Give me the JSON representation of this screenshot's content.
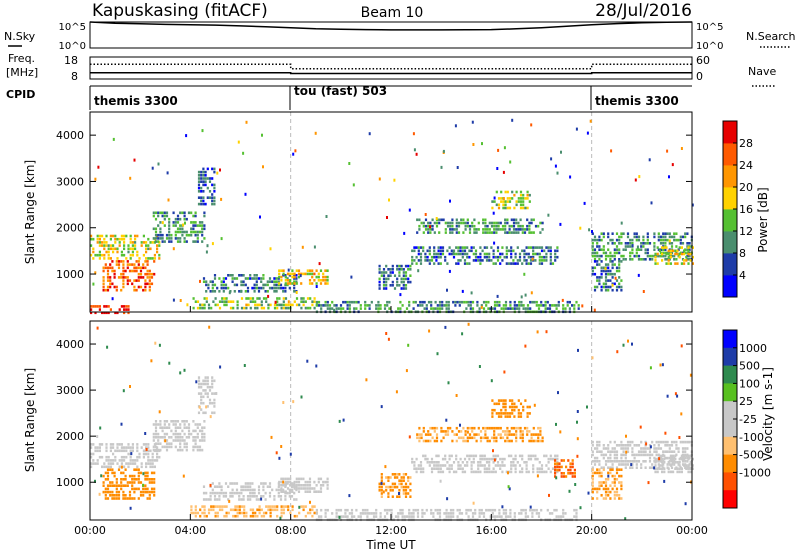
{
  "header": {
    "station": "Kapuskasing (fitACF)",
    "beam": "Beam 10",
    "date": "28/Jul/2016"
  },
  "noise_panel": {
    "left_label": "N.Sky",
    "right_label": "N.Search",
    "left_ticks": [
      "10^5",
      "10^0"
    ],
    "right_ticks": [
      "10^5",
      "10^0"
    ]
  },
  "freq_panel": {
    "left_label_top": "Freq.",
    "left_label_bottom": "[MHz]",
    "right_label": "Nave",
    "left_ticks": [
      "18",
      "8"
    ],
    "right_ticks": [
      "60",
      "0"
    ]
  },
  "cpid_panel": {
    "label": "CPID",
    "segments": [
      {
        "label": "themis 3300",
        "start_hour": 0,
        "end_hour": 8
      },
      {
        "label": "tou (fast) 503",
        "start_hour": 8,
        "end_hour": 20
      },
      {
        "label": "themis 3300",
        "start_hour": 20,
        "end_hour": 24
      }
    ]
  },
  "colors": {
    "power": [
      "#0000ff",
      "#1e3ca8",
      "#4a8e6e",
      "#55c032",
      "#ffd200",
      "#ff9600",
      "#ff5a00",
      "#e60000"
    ],
    "velocity": [
      "#ff0000",
      "#ff5000",
      "#ff8c00",
      "#ffc070",
      "#c8c8c8",
      "#c8c8c8",
      "#58c020",
      "#2e8a4e",
      "#1e3ca8",
      "#0000ff"
    ],
    "ground_scatter": "#c8c8c8"
  },
  "power_colorbar": {
    "label": "Power [dB]",
    "ticks": [
      "28",
      "24",
      "20",
      "16",
      "12",
      "8",
      "4"
    ]
  },
  "velocity_colorbar": {
    "label": "Velocity [m s-1]",
    "ticks": [
      "1000",
      "500",
      "100",
      "25",
      "-25",
      "-100",
      "-500",
      "-1000"
    ]
  },
  "chart_data": [
    {
      "type": "line",
      "title": "N.Sky / N.Search",
      "y_scale": "log",
      "ylim": [
        1,
        100000
      ],
      "x": [
        0,
        1,
        2,
        3,
        4,
        5,
        6,
        7,
        8,
        9,
        10,
        11,
        12,
        13,
        14,
        15,
        16,
        17,
        18,
        19,
        20,
        21,
        22,
        23,
        24
      ],
      "series": [
        {
          "name": "N.Sky",
          "values": [
            100000,
            60000,
            45000,
            35000,
            30000,
            25000,
            18000,
            12000,
            8000,
            5000,
            4000,
            3500,
            3000,
            3000,
            3000,
            3200,
            3500,
            5000,
            8000,
            15000,
            30000,
            50000,
            70000,
            90000,
            100000
          ]
        }
      ]
    },
    {
      "type": "line",
      "title": "Freq / Nave",
      "ylim": [
        8,
        18
      ],
      "x": [
        0,
        8,
        8,
        20,
        20,
        24
      ],
      "series": [
        {
          "name": "Freq.",
          "values": [
            10.8,
            10.8,
            10.5,
            10.5,
            10.8,
            10.8
          ]
        },
        {
          "name": "Nave",
          "values": [
            40,
            40,
            28,
            28,
            40,
            40
          ]
        }
      ]
    },
    {
      "type": "heatmap",
      "title": "Power",
      "xlabel": "",
      "ylabel": "Slant Range [km]",
      "xlim": [
        0,
        24
      ],
      "ylim": [
        180,
        4500
      ],
      "xticks": [
        "00:00",
        "04:00",
        "08:00",
        "12:00",
        "16:00",
        "20:00",
        "00:00"
      ],
      "yticks": [
        1000,
        2000,
        3000,
        4000
      ],
      "colorbar": {
        "label": "Power [dB]",
        "range": [
          0,
          30
        ]
      },
      "regions": [
        {
          "t0": 0.0,
          "t1": 2.8,
          "r0": 1350,
          "r1": 1850,
          "value": 16
        },
        {
          "t0": 0.5,
          "t1": 2.6,
          "r0": 650,
          "r1": 1300,
          "value": 24
        },
        {
          "t0": 2.5,
          "t1": 4.6,
          "r0": 1700,
          "r1": 2350,
          "value": 10
        },
        {
          "t0": 4.3,
          "t1": 5.0,
          "r0": 2500,
          "r1": 3300,
          "value": 6
        },
        {
          "t0": 4.0,
          "t1": 9.0,
          "r0": 280,
          "r1": 500,
          "value": 14
        },
        {
          "t0": 4.5,
          "t1": 8.2,
          "r0": 650,
          "r1": 1000,
          "value": 8
        },
        {
          "t0": 7.5,
          "t1": 9.5,
          "r0": 800,
          "r1": 1100,
          "value": 18
        },
        {
          "t0": 9.0,
          "t1": 19.5,
          "r0": 200,
          "r1": 420,
          "value": 10
        },
        {
          "t0": 11.5,
          "t1": 12.8,
          "r0": 700,
          "r1": 1200,
          "value": 8
        },
        {
          "t0": 12.8,
          "t1": 18.6,
          "r0": 1200,
          "r1": 1600,
          "value": 8
        },
        {
          "t0": 13.0,
          "t1": 18.0,
          "r0": 1900,
          "r1": 2200,
          "value": 10
        },
        {
          "t0": 16.0,
          "t1": 17.5,
          "r0": 2400,
          "r1": 2800,
          "value": 14
        },
        {
          "t0": 20.0,
          "t1": 24.0,
          "r0": 1300,
          "r1": 1900,
          "value": 10
        },
        {
          "t0": 20.0,
          "t1": 21.2,
          "r0": 650,
          "r1": 1300,
          "value": 8
        },
        {
          "t0": 22.5,
          "t1": 24.0,
          "r0": 1200,
          "r1": 1600,
          "value": 16
        },
        {
          "t0": 0.0,
          "t1": 1.5,
          "r0": 180,
          "r1": 330,
          "value": 28
        }
      ]
    },
    {
      "type": "heatmap",
      "title": "Velocity",
      "xlabel": "Time UT",
      "ylabel": "Slant Range [km]",
      "xlim": [
        0,
        24
      ],
      "ylim": [
        180,
        4500
      ],
      "xticks": [
        "00:00",
        "04:00",
        "08:00",
        "12:00",
        "16:00",
        "20:00",
        "00:00"
      ],
      "yticks": [
        1000,
        2000,
        3000,
        4000
      ],
      "colorbar": {
        "label": "Velocity [m s-1]",
        "range": [
          -1000,
          1000
        ]
      },
      "regions": [
        {
          "t0": 0.0,
          "t1": 2.8,
          "r0": 1350,
          "r1": 1850,
          "value": 0
        },
        {
          "t0": 0.5,
          "t1": 2.6,
          "r0": 650,
          "r1": 1300,
          "value": -200
        },
        {
          "t0": 2.5,
          "t1": 4.6,
          "r0": 1700,
          "r1": 2350,
          "value": 0
        },
        {
          "t0": 4.3,
          "t1": 5.0,
          "r0": 2500,
          "r1": 3300,
          "value": 0
        },
        {
          "t0": 4.0,
          "t1": 9.0,
          "r0": 280,
          "r1": 500,
          "value": -80
        },
        {
          "t0": 4.5,
          "t1": 8.2,
          "r0": 650,
          "r1": 1000,
          "value": 0
        },
        {
          "t0": 7.5,
          "t1": 9.5,
          "r0": 800,
          "r1": 1100,
          "value": 0
        },
        {
          "t0": 9.0,
          "t1": 19.5,
          "r0": 200,
          "r1": 420,
          "value": 0
        },
        {
          "t0": 11.5,
          "t1": 12.8,
          "r0": 700,
          "r1": 1200,
          "value": -150
        },
        {
          "t0": 12.8,
          "t1": 18.6,
          "r0": 1200,
          "r1": 1600,
          "value": 0
        },
        {
          "t0": 13.0,
          "t1": 18.0,
          "r0": 1900,
          "r1": 2200,
          "value": -120
        },
        {
          "t0": 16.0,
          "t1": 17.5,
          "r0": 2400,
          "r1": 2800,
          "value": -300
        },
        {
          "t0": 18.5,
          "t1": 19.3,
          "r0": 1100,
          "r1": 1500,
          "value": -600
        },
        {
          "t0": 20.0,
          "t1": 24.0,
          "r0": 1300,
          "r1": 1900,
          "value": 0
        },
        {
          "t0": 20.0,
          "t1": 21.2,
          "r0": 650,
          "r1": 1300,
          "value": -100
        },
        {
          "t0": 22.5,
          "t1": 24.0,
          "r0": 1200,
          "r1": 1600,
          "value": 0
        }
      ]
    }
  ]
}
